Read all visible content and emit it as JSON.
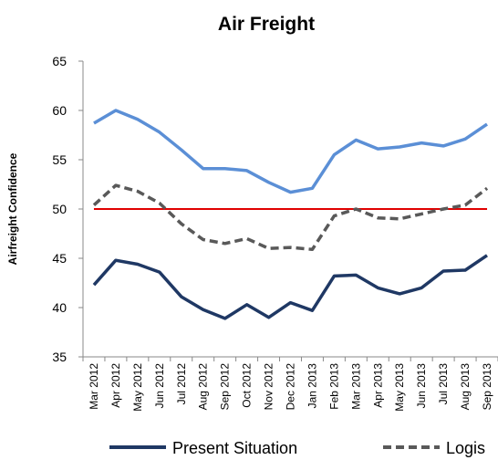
{
  "chart_data": {
    "type": "line",
    "title": "Air Freight",
    "y_label": "Airfreight Confidence",
    "categories": [
      "Mar 2012",
      "Apr 2012",
      "May 2012",
      "Jun 2012",
      "Jul 2012",
      "Aug 2012",
      "Sep 2012",
      "Oct 2012",
      "Nov 2012",
      "Dec 2012",
      "Jan 2013",
      "Feb 2013",
      "Mar 2013",
      "Apr 2013",
      "May 2013",
      "Jun 2013",
      "Jul 2013",
      "Aug 2013",
      "Sep 2013"
    ],
    "series": [
      {
        "name": "Present Situation",
        "color": "#1f3864",
        "dash": false,
        "values": [
          42.3,
          44.8,
          44.4,
          43.6,
          41.1,
          39.8,
          38.9,
          40.3,
          39.0,
          40.5,
          39.7,
          43.2,
          43.3,
          42.0,
          41.4,
          42.0,
          43.7,
          43.8,
          45.3
        ]
      },
      {
        "name": "Logis",
        "color": "#595959",
        "dash": true,
        "values": [
          50.4,
          52.4,
          51.8,
          50.6,
          48.5,
          46.9,
          46.5,
          47.0,
          46.0,
          46.1,
          45.9,
          49.3,
          50.0,
          49.1,
          49.0,
          49.5,
          50.0,
          50.4,
          52.1
        ]
      },
      {
        "color": "#5b8fd6",
        "dash": false,
        "values": [
          58.7,
          60.0,
          59.1,
          57.8,
          56.0,
          54.1,
          54.1,
          53.9,
          52.7,
          51.7,
          52.1,
          55.5,
          57.0,
          56.1,
          56.3,
          56.7,
          56.4,
          57.1,
          58.6
        ]
      }
    ],
    "reference_line": {
      "value": 50,
      "color": "#e00000"
    },
    "ylim": [
      35,
      65
    ],
    "yticks": [
      35,
      40,
      45,
      50,
      55,
      60,
      65
    ],
    "legend": "bottom"
  }
}
